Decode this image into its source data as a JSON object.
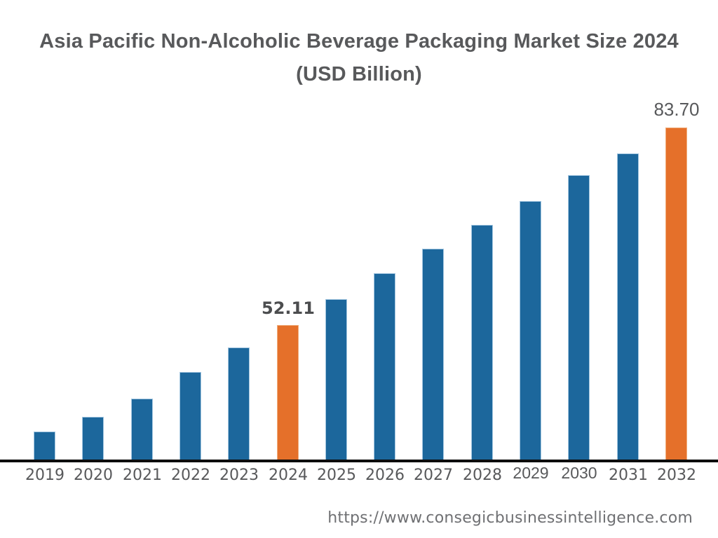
{
  "page": {
    "title_lines": [
      "Asia Pacific Non-Alcoholic Beverage Packaging Market Size 2024",
      "(USD Billion)"
    ],
    "footer_url": "https://www.consegicbusinessintelligence.com"
  },
  "chart_data": {
    "type": "bar",
    "title": "Asia Pacific Non-Alcoholic Beverage Packaging Market Size 2024 (USD Billion)",
    "xlabel": "",
    "ylabel": "USD Billion",
    "categories": [
      "2019",
      "2020",
      "2021",
      "2022",
      "2023",
      "2024",
      "2025",
      "2026",
      "2027",
      "2028",
      "2029",
      "2030",
      "2031",
      "2032"
    ],
    "values": [
      35.1,
      37.4,
      40.4,
      44.6,
      48.5,
      52.11,
      56.3,
      60.4,
      64.3,
      68.1,
      71.9,
      76.1,
      79.6,
      83.7
    ],
    "value_labels": {
      "2024": "52.11",
      "2032": "83.70"
    },
    "highlighted_categories": [
      "2024",
      "2032"
    ],
    "alt_font_ticks": [
      "2029",
      "2030"
    ],
    "alt_font_value_labels": [
      "2032"
    ],
    "grid": false,
    "legend": false,
    "y_baseline_value": 30.3,
    "colors": {
      "bar_default": "#1c679c",
      "bar_default_edge": "#a3c6e0",
      "bar_highlight": "#e5702a",
      "bar_highlight_edge": "#f0ae7d",
      "axis_line": "#0d0d0d",
      "title_text": "#58595b",
      "tick_text": "#58595b",
      "value_label_text": "#4c4d4f",
      "value_label_alt_text": "#58595b",
      "footer_text": "#6f7073"
    }
  }
}
